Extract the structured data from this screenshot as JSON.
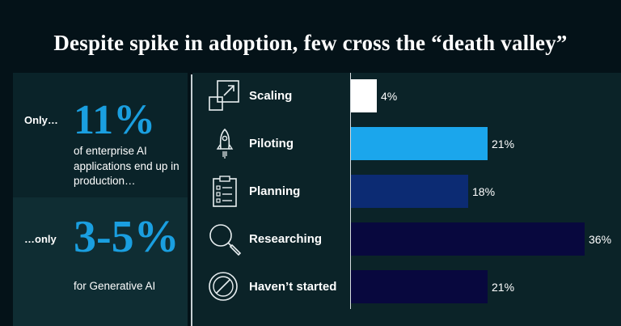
{
  "title": "Despite spike in adoption, few cross the “death valley”",
  "left_panel": {
    "first_prefix": "Only…",
    "first_stat": "11%",
    "first_desc": "of enterprise AI applications end up in production…",
    "second_prefix": "…only",
    "second_stat": "3-5%",
    "second_desc": "for Generative AI"
  },
  "colors": {
    "accent": "#1a9fe0",
    "scaling": "#ffffff",
    "piloting": "#1ba6ec",
    "planning": "#0c2b73",
    "researching": "#08083e",
    "havent_started": "#08083e"
  },
  "icons": [
    "scaling-icon",
    "rocket-icon",
    "clipboard-icon",
    "magnifier-icon",
    "prohibited-icon"
  ],
  "chart_data": {
    "type": "bar",
    "orientation": "horizontal",
    "categories": [
      "Scaling",
      "Piloting",
      "Planning",
      "Researching",
      "Haven’t started"
    ],
    "values": [
      4,
      21,
      18,
      36,
      21
    ],
    "value_labels": [
      "4%",
      "21%",
      "18%",
      "36%",
      "21%"
    ],
    "unit": "%",
    "xlim": [
      0,
      36
    ],
    "grid": false,
    "legend": "none"
  }
}
